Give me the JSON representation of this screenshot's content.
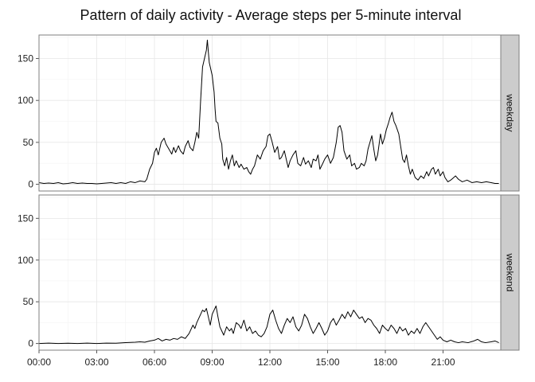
{
  "chart_data": {
    "type": "line",
    "title": "Pattern of daily activity - Average steps per 5-minute interval",
    "xlabel": "",
    "ylabel": "",
    "x_unit": "hour of day",
    "xlim": [
      0,
      24
    ],
    "ylim": [
      -8,
      178
    ],
    "x_ticks": [
      {
        "value": 0,
        "label": "00:00"
      },
      {
        "value": 3,
        "label": "03:00"
      },
      {
        "value": 6,
        "label": "06:00"
      },
      {
        "value": 9,
        "label": "09:00"
      },
      {
        "value": 12,
        "label": "12:00"
      },
      {
        "value": 15,
        "label": "15:00"
      },
      {
        "value": 18,
        "label": "18:00"
      },
      {
        "value": 21,
        "label": "21:00"
      }
    ],
    "y_ticks": [
      0,
      50,
      100,
      150
    ],
    "grid": true,
    "line_color": "#000000",
    "panels": [
      {
        "strip": "weekday",
        "points": [
          [
            0,
            2
          ],
          [
            0.25,
            1
          ],
          [
            0.5,
            1.5
          ],
          [
            0.75,
            1
          ],
          [
            1,
            2
          ],
          [
            1.25,
            0.5
          ],
          [
            1.5,
            1
          ],
          [
            1.75,
            2
          ],
          [
            2,
            1
          ],
          [
            2.25,
            1.5
          ],
          [
            2.5,
            1
          ],
          [
            2.75,
            1
          ],
          [
            3,
            0.5
          ],
          [
            3.25,
            1
          ],
          [
            3.5,
            1.5
          ],
          [
            3.75,
            2
          ],
          [
            4,
            1
          ],
          [
            4.25,
            2
          ],
          [
            4.5,
            1
          ],
          [
            4.75,
            3
          ],
          [
            5,
            2
          ],
          [
            5.25,
            4
          ],
          [
            5.5,
            3
          ],
          [
            5.6,
            6
          ],
          [
            5.75,
            18
          ],
          [
            5.9,
            25
          ],
          [
            6,
            38
          ],
          [
            6.1,
            43
          ],
          [
            6.2,
            35
          ],
          [
            6.35,
            50
          ],
          [
            6.5,
            55
          ],
          [
            6.6,
            48
          ],
          [
            6.75,
            42
          ],
          [
            6.9,
            36
          ],
          [
            7.0,
            44
          ],
          [
            7.1,
            38
          ],
          [
            7.25,
            46
          ],
          [
            7.35,
            40
          ],
          [
            7.5,
            36
          ],
          [
            7.6,
            45
          ],
          [
            7.75,
            52
          ],
          [
            7.85,
            44
          ],
          [
            8.0,
            40
          ],
          [
            8.1,
            50
          ],
          [
            8.2,
            62
          ],
          [
            8.3,
            55
          ],
          [
            8.4,
            100
          ],
          [
            8.5,
            140
          ],
          [
            8.6,
            150
          ],
          [
            8.7,
            160
          ],
          [
            8.75,
            172
          ],
          [
            8.8,
            158
          ],
          [
            8.85,
            145
          ],
          [
            8.9,
            140
          ],
          [
            9.0,
            130
          ],
          [
            9.1,
            110
          ],
          [
            9.15,
            90
          ],
          [
            9.2,
            75
          ],
          [
            9.3,
            73
          ],
          [
            9.4,
            55
          ],
          [
            9.5,
            48
          ],
          [
            9.55,
            30
          ],
          [
            9.65,
            22
          ],
          [
            9.75,
            32
          ],
          [
            9.85,
            18
          ],
          [
            9.95,
            28
          ],
          [
            10.05,
            35
          ],
          [
            10.15,
            22
          ],
          [
            10.25,
            28
          ],
          [
            10.4,
            20
          ],
          [
            10.5,
            24
          ],
          [
            10.65,
            18
          ],
          [
            10.8,
            20
          ],
          [
            10.9,
            15
          ],
          [
            11.0,
            12
          ],
          [
            11.1,
            18
          ],
          [
            11.2,
            22
          ],
          [
            11.35,
            35
          ],
          [
            11.5,
            30
          ],
          [
            11.65,
            40
          ],
          [
            11.8,
            45
          ],
          [
            11.9,
            58
          ],
          [
            12.0,
            60
          ],
          [
            12.1,
            52
          ],
          [
            12.25,
            38
          ],
          [
            12.4,
            45
          ],
          [
            12.5,
            30
          ],
          [
            12.6,
            32
          ],
          [
            12.75,
            40
          ],
          [
            12.85,
            30
          ],
          [
            12.95,
            20
          ],
          [
            13.05,
            28
          ],
          [
            13.2,
            35
          ],
          [
            13.35,
            40
          ],
          [
            13.45,
            25
          ],
          [
            13.6,
            22
          ],
          [
            13.75,
            32
          ],
          [
            13.85,
            24
          ],
          [
            14.0,
            28
          ],
          [
            14.15,
            20
          ],
          [
            14.25,
            30
          ],
          [
            14.4,
            28
          ],
          [
            14.5,
            35
          ],
          [
            14.6,
            18
          ],
          [
            14.75,
            25
          ],
          [
            14.85,
            30
          ],
          [
            15.0,
            35
          ],
          [
            15.15,
            25
          ],
          [
            15.3,
            32
          ],
          [
            15.45,
            50
          ],
          [
            15.55,
            68
          ],
          [
            15.65,
            70
          ],
          [
            15.75,
            62
          ],
          [
            15.85,
            40
          ],
          [
            16.0,
            30
          ],
          [
            16.15,
            35
          ],
          [
            16.25,
            22
          ],
          [
            16.4,
            25
          ],
          [
            16.5,
            18
          ],
          [
            16.65,
            20
          ],
          [
            16.75,
            25
          ],
          [
            16.9,
            22
          ],
          [
            17.0,
            28
          ],
          [
            17.1,
            42
          ],
          [
            17.2,
            50
          ],
          [
            17.3,
            58
          ],
          [
            17.4,
            42
          ],
          [
            17.5,
            28
          ],
          [
            17.6,
            35
          ],
          [
            17.75,
            60
          ],
          [
            17.85,
            48
          ],
          [
            17.95,
            55
          ],
          [
            18.05,
            65
          ],
          [
            18.15,
            72
          ],
          [
            18.25,
            80
          ],
          [
            18.35,
            86
          ],
          [
            18.45,
            75
          ],
          [
            18.55,
            70
          ],
          [
            18.7,
            60
          ],
          [
            18.8,
            45
          ],
          [
            18.9,
            30
          ],
          [
            19.0,
            26
          ],
          [
            19.1,
            35
          ],
          [
            19.2,
            22
          ],
          [
            19.3,
            12
          ],
          [
            19.4,
            18
          ],
          [
            19.55,
            8
          ],
          [
            19.7,
            5
          ],
          [
            19.85,
            10
          ],
          [
            20.0,
            7
          ],
          [
            20.15,
            15
          ],
          [
            20.25,
            10
          ],
          [
            20.4,
            18
          ],
          [
            20.5,
            20
          ],
          [
            20.6,
            12
          ],
          [
            20.75,
            18
          ],
          [
            20.85,
            10
          ],
          [
            21.0,
            15
          ],
          [
            21.1,
            8
          ],
          [
            21.25,
            3
          ],
          [
            21.4,
            5
          ],
          [
            21.5,
            7
          ],
          [
            21.65,
            10
          ],
          [
            21.8,
            6
          ],
          [
            22.0,
            3
          ],
          [
            22.25,
            5
          ],
          [
            22.5,
            2
          ],
          [
            22.75,
            3
          ],
          [
            23.0,
            2
          ],
          [
            23.25,
            3
          ],
          [
            23.5,
            2
          ],
          [
            23.7,
            1
          ],
          [
            23.9,
            1
          ]
        ]
      },
      {
        "strip": "weekend",
        "points": [
          [
            0,
            0
          ],
          [
            0.5,
            0.5
          ],
          [
            1,
            0
          ],
          [
            1.5,
            0.3
          ],
          [
            2,
            0
          ],
          [
            2.5,
            0.5
          ],
          [
            3,
            0
          ],
          [
            3.5,
            0.5
          ],
          [
            4,
            0.3
          ],
          [
            4.5,
            1
          ],
          [
            5,
            1.5
          ],
          [
            5.25,
            2
          ],
          [
            5.5,
            1.5
          ],
          [
            5.75,
            3
          ],
          [
            6,
            4
          ],
          [
            6.2,
            6
          ],
          [
            6.4,
            3
          ],
          [
            6.6,
            5
          ],
          [
            6.8,
            4
          ],
          [
            7.0,
            6
          ],
          [
            7.2,
            5
          ],
          [
            7.4,
            8
          ],
          [
            7.6,
            6
          ],
          [
            7.8,
            12
          ],
          [
            8.0,
            22
          ],
          [
            8.1,
            18
          ],
          [
            8.2,
            25
          ],
          [
            8.3,
            30
          ],
          [
            8.4,
            35
          ],
          [
            8.5,
            40
          ],
          [
            8.6,
            38
          ],
          [
            8.7,
            42
          ],
          [
            8.8,
            32
          ],
          [
            8.9,
            22
          ],
          [
            9.0,
            35
          ],
          [
            9.1,
            40
          ],
          [
            9.2,
            45
          ],
          [
            9.3,
            32
          ],
          [
            9.4,
            20
          ],
          [
            9.5,
            15
          ],
          [
            9.6,
            10
          ],
          [
            9.75,
            20
          ],
          [
            9.9,
            15
          ],
          [
            10.0,
            18
          ],
          [
            10.1,
            12
          ],
          [
            10.25,
            25
          ],
          [
            10.4,
            22
          ],
          [
            10.5,
            18
          ],
          [
            10.65,
            28
          ],
          [
            10.8,
            15
          ],
          [
            10.95,
            20
          ],
          [
            11.1,
            12
          ],
          [
            11.25,
            15
          ],
          [
            11.4,
            10
          ],
          [
            11.55,
            8
          ],
          [
            11.7,
            12
          ],
          [
            11.85,
            20
          ],
          [
            12.0,
            35
          ],
          [
            12.15,
            40
          ],
          [
            12.3,
            28
          ],
          [
            12.45,
            18
          ],
          [
            12.6,
            12
          ],
          [
            12.75,
            22
          ],
          [
            12.9,
            30
          ],
          [
            13.05,
            25
          ],
          [
            13.2,
            32
          ],
          [
            13.35,
            20
          ],
          [
            13.5,
            15
          ],
          [
            13.65,
            22
          ],
          [
            13.8,
            35
          ],
          [
            13.95,
            30
          ],
          [
            14.1,
            20
          ],
          [
            14.25,
            12
          ],
          [
            14.4,
            18
          ],
          [
            14.55,
            25
          ],
          [
            14.7,
            18
          ],
          [
            14.85,
            10
          ],
          [
            15.0,
            15
          ],
          [
            15.15,
            25
          ],
          [
            15.3,
            30
          ],
          [
            15.45,
            22
          ],
          [
            15.6,
            28
          ],
          [
            15.75,
            35
          ],
          [
            15.9,
            30
          ],
          [
            16.05,
            38
          ],
          [
            16.2,
            32
          ],
          [
            16.35,
            40
          ],
          [
            16.5,
            35
          ],
          [
            16.65,
            30
          ],
          [
            16.8,
            32
          ],
          [
            16.95,
            25
          ],
          [
            17.1,
            30
          ],
          [
            17.25,
            28
          ],
          [
            17.4,
            22
          ],
          [
            17.55,
            18
          ],
          [
            17.7,
            12
          ],
          [
            17.85,
            22
          ],
          [
            18.0,
            18
          ],
          [
            18.15,
            15
          ],
          [
            18.3,
            22
          ],
          [
            18.45,
            18
          ],
          [
            18.6,
            12
          ],
          [
            18.75,
            20
          ],
          [
            18.9,
            15
          ],
          [
            19.05,
            18
          ],
          [
            19.2,
            10
          ],
          [
            19.35,
            15
          ],
          [
            19.5,
            12
          ],
          [
            19.65,
            18
          ],
          [
            19.8,
            12
          ],
          [
            19.95,
            20
          ],
          [
            20.1,
            25
          ],
          [
            20.25,
            20
          ],
          [
            20.4,
            15
          ],
          [
            20.55,
            10
          ],
          [
            20.7,
            5
          ],
          [
            20.85,
            8
          ],
          [
            21.0,
            4
          ],
          [
            21.2,
            2
          ],
          [
            21.4,
            4
          ],
          [
            21.6,
            2
          ],
          [
            21.8,
            1
          ],
          [
            22.0,
            2
          ],
          [
            22.3,
            1
          ],
          [
            22.6,
            3
          ],
          [
            22.8,
            5
          ],
          [
            23.0,
            2
          ],
          [
            23.2,
            1
          ],
          [
            23.5,
            2
          ],
          [
            23.7,
            3
          ],
          [
            23.9,
            1
          ]
        ]
      }
    ]
  }
}
